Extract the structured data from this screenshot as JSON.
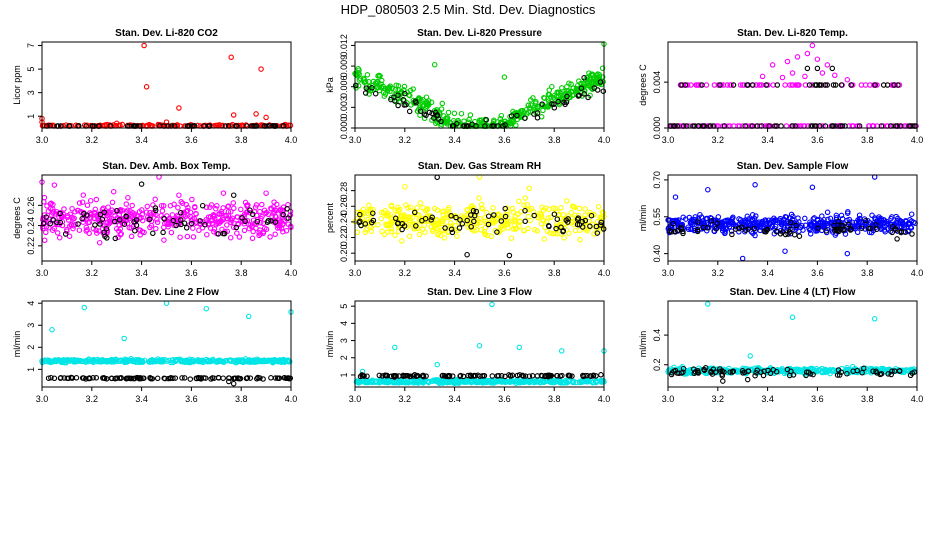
{
  "figure_title": "HDP_080503  2.5 Min. Std. Dev. Diagnostics",
  "chart_data": [
    {
      "type": "scatter",
      "title": "Stan. Dev. Li-820 CO2",
      "xlabel": "",
      "ylabel": "Licor ppm",
      "xlim": [
        3.0,
        4.0
      ],
      "ylim": [
        0,
        7.3
      ],
      "xticks": [
        3.0,
        3.2,
        3.4,
        3.6,
        3.8,
        4.0
      ],
      "xtick_labels": [
        "3.0",
        "3.2",
        "3.4",
        "3.6",
        "3.8",
        "4.0"
      ],
      "yticks": [
        1,
        3,
        5,
        7
      ],
      "ytick_labels": [
        "1",
        "3",
        "5",
        "7"
      ],
      "series": [
        {
          "name": "red",
          "color": "#ff0000",
          "base": 0.15,
          "spread": 0.25,
          "n": 150,
          "points": [
            [
              3.0,
              0.8
            ],
            [
              3.0,
              0.5
            ],
            [
              3.41,
              7.0
            ],
            [
              3.42,
              3.5
            ],
            [
              3.55,
              1.7
            ],
            [
              3.76,
              6.0
            ],
            [
              3.77,
              1.1
            ],
            [
              3.86,
              1.2
            ],
            [
              3.88,
              5.0
            ],
            [
              3.9,
              0.9
            ],
            [
              3.3,
              0.4
            ],
            [
              3.5,
              0.5
            ]
          ]
        },
        {
          "name": "black",
          "color": "#000000",
          "base": 0.12,
          "spread": 0.12,
          "n": 60,
          "points": []
        }
      ]
    },
    {
      "type": "scatter",
      "title": "Stan. Dev. Li-820 Pressure",
      "xlabel": "",
      "ylabel": "kPa",
      "xlim": [
        3.0,
        4.0
      ],
      "ylim": [
        0,
        0.0125
      ],
      "xticks": [
        3.0,
        3.2,
        3.4,
        3.6,
        3.8,
        4.0
      ],
      "xtick_labels": [
        "3.0",
        "3.2",
        "3.4",
        "3.6",
        "3.8",
        "4.0"
      ],
      "yticks": [
        0.0,
        0.003,
        0.006,
        0.009,
        0.012
      ],
      "ytick_labels": [
        "0.000",
        "0.003",
        "0.006",
        "0.009",
        "0.012"
      ],
      "series": [
        {
          "name": "green",
          "color": "#00cc00",
          "shape": "u",
          "top": 0.0075,
          "bottom": 0.0002,
          "spread": 0.0015,
          "n": 420,
          "points": [
            [
              3.32,
              0.0092
            ],
            [
              4.0,
              0.0125
            ],
            [
              3.6,
              0.0074
            ]
          ]
        },
        {
          "name": "black",
          "color": "#000000",
          "shape": "u",
          "top": 0.006,
          "bottom": 0.0001,
          "spread": 0.0009,
          "n": 70,
          "points": [
            [
              3.92,
              0.0073
            ],
            [
              3.2,
              0.005
            ]
          ]
        }
      ]
    },
    {
      "type": "scatter",
      "title": "Stan. Dev. Li-820 Temp.",
      "xlabel": "",
      "ylabel": "degrees C",
      "xlim": [
        3.0,
        4.0
      ],
      "ylim": [
        0,
        0.0075
      ],
      "xticks": [
        3.0,
        3.2,
        3.4,
        3.6,
        3.8,
        4.0
      ],
      "xtick_labels": [
        "3.0",
        "3.2",
        "3.4",
        "3.6",
        "3.8",
        "4.0"
      ],
      "yticks": [
        0.0,
        0.004
      ],
      "ytick_labels": [
        "0.000",
        "0.004"
      ],
      "series": [
        {
          "name": "magenta",
          "color": "#ff00ff",
          "levels": [
            0.0,
            0.00375
          ],
          "n": 160,
          "points": [
            [
              3.42,
              0.0055
            ],
            [
              3.48,
              0.0058
            ],
            [
              3.52,
              0.0062
            ],
            [
              3.56,
              0.0065
            ],
            [
              3.58,
              0.0072
            ],
            [
              3.6,
              0.006
            ],
            [
              3.64,
              0.0055
            ],
            [
              3.5,
              0.0048
            ],
            [
              3.55,
              0.0045
            ],
            [
              3.62,
              0.0048
            ],
            [
              3.38,
              0.0045
            ],
            [
              3.67,
              0.0046
            ],
            [
              3.72,
              0.0042
            ],
            [
              3.46,
              0.0044
            ]
          ]
        },
        {
          "name": "black",
          "color": "#000000",
          "levels": [
            0.0,
            0.00375
          ],
          "n": 80,
          "points": [
            [
              3.56,
              0.0052
            ],
            [
              3.6,
              0.0052
            ],
            [
              3.66,
              0.0052
            ]
          ]
        }
      ]
    },
    {
      "type": "scatter",
      "title": "Stan. Dev. Amb. Box Temp.",
      "xlabel": "",
      "ylabel": "degrees C",
      "xlim": [
        3.0,
        4.0
      ],
      "ylim": [
        0.205,
        0.29
      ],
      "xticks": [
        3.0,
        3.2,
        3.4,
        3.6,
        3.8,
        4.0
      ],
      "xtick_labels": [
        "3.0",
        "3.2",
        "3.4",
        "3.6",
        "3.8",
        "4.0"
      ],
      "yticks": [
        0.22,
        0.24,
        0.26
      ],
      "ytick_labels": [
        "0.22",
        "0.24",
        "0.26"
      ],
      "series": [
        {
          "name": "magenta",
          "color": "#ff00ff",
          "center": 0.247,
          "spread": 0.018,
          "n": 460,
          "points": [
            [
              3.0,
              0.283
            ],
            [
              3.05,
              0.28
            ],
            [
              3.47,
              0.29
            ],
            [
              3.55,
              0.27
            ],
            [
              3.9,
              0.272
            ]
          ]
        },
        {
          "name": "black",
          "color": "#000000",
          "center": 0.245,
          "spread": 0.014,
          "n": 65,
          "points": [
            [
              3.4,
              0.281
            ],
            [
              3.77,
              0.27
            ]
          ]
        }
      ]
    },
    {
      "type": "scatter",
      "title": "Stan. Dev. Gas Stream RH",
      "xlabel": "",
      "ylabel": "percent",
      "xlim": [
        3.0,
        4.0
      ],
      "ylim": [
        0.19,
        0.3
      ],
      "xticks": [
        3.0,
        3.2,
        3.4,
        3.6,
        3.8,
        4.0
      ],
      "xtick_labels": [
        "3.0",
        "3.2",
        "3.4",
        "3.6",
        "3.8",
        "4.0"
      ],
      "yticks": [
        0.2,
        0.22,
        0.24,
        0.26,
        0.28
      ],
      "ytick_labels": [
        "0.20",
        "0.22",
        "0.24",
        "0.26",
        "0.28"
      ],
      "series": [
        {
          "name": "yellow",
          "color": "#ffff00",
          "center": 0.242,
          "spread": 0.02,
          "n": 420,
          "points": [
            [
              3.5,
              0.3
            ],
            [
              3.2,
              0.285
            ],
            [
              3.7,
              0.283
            ]
          ]
        },
        {
          "name": "black",
          "color": "#000000",
          "center": 0.24,
          "spread": 0.017,
          "n": 70,
          "points": [
            [
              3.33,
              0.297
            ],
            [
              3.62,
              0.197
            ],
            [
              3.45,
              0.198
            ]
          ]
        }
      ]
    },
    {
      "type": "scatter",
      "title": "Stan. Dev. Sample Flow",
      "xlabel": "",
      "ylabel": "ml/min",
      "xlim": [
        3.0,
        4.0
      ],
      "ylim": [
        0.37,
        0.72
      ],
      "xticks": [
        3.0,
        3.2,
        3.4,
        3.6,
        3.8,
        4.0
      ],
      "xtick_labels": [
        "3.0",
        "3.2",
        "3.4",
        "3.6",
        "3.8",
        "4.0"
      ],
      "yticks": [
        0.4,
        0.55,
        0.7
      ],
      "ytick_labels": [
        "0.40",
        "0.55",
        "0.70"
      ],
      "series": [
        {
          "name": "blue",
          "color": "#0000ff",
          "center": 0.52,
          "spread": 0.035,
          "n": 480,
          "points": [
            [
              3.16,
              0.66
            ],
            [
              3.35,
              0.68
            ],
            [
              3.58,
              0.67
            ],
            [
              3.83,
              0.72
            ],
            [
              3.03,
              0.63
            ],
            [
              3.72,
              0.4
            ],
            [
              3.3,
              0.38
            ],
            [
              3.47,
              0.41
            ]
          ]
        },
        {
          "name": "black",
          "color": "#000000",
          "center": 0.5,
          "spread": 0.03,
          "n": 70,
          "points": [
            [
              3.92,
              0.46
            ],
            [
              3.98,
              0.48
            ]
          ]
        }
      ]
    },
    {
      "type": "scatter",
      "title": "Stan. Dev. Line 2 Flow",
      "xlabel": "",
      "ylabel": "ml/min",
      "xlim": [
        3.0,
        4.0
      ],
      "ylim": [
        0.2,
        4.1
      ],
      "xticks": [
        3.0,
        3.2,
        3.4,
        3.6,
        3.8,
        4.0
      ],
      "xtick_labels": [
        "3.0",
        "3.2",
        "3.4",
        "3.6",
        "3.8",
        "4.0"
      ],
      "yticks": [
        1,
        2,
        3,
        4
      ],
      "ytick_labels": [
        "1",
        "2",
        "3",
        "4"
      ],
      "series": [
        {
          "name": "cyan",
          "color": "#00e5e5",
          "center": 1.38,
          "spread": 0.07,
          "n": 380,
          "points": [
            [
              3.04,
              2.8
            ],
            [
              3.17,
              3.8
            ],
            [
              3.33,
              2.4
            ],
            [
              3.5,
              4.0
            ],
            [
              3.66,
              3.75
            ],
            [
              3.83,
              3.4
            ],
            [
              4.0,
              3.6
            ]
          ]
        },
        {
          "name": "black",
          "color": "#000000",
          "center": 0.6,
          "spread": 0.03,
          "n": 110,
          "points": [
            [
              3.77,
              0.35
            ],
            [
              3.75,
              0.45
            ]
          ]
        }
      ]
    },
    {
      "type": "scatter",
      "title": "Stan. Dev. Line 3 Flow",
      "xlabel": "",
      "ylabel": "ml/min",
      "xlim": [
        3.0,
        4.0
      ],
      "ylim": [
        0.3,
        5.3
      ],
      "xticks": [
        3.0,
        3.2,
        3.4,
        3.6,
        3.8,
        4.0
      ],
      "xtick_labels": [
        "3.0",
        "3.2",
        "3.4",
        "3.6",
        "3.8",
        "4.0"
      ],
      "yticks": [
        1,
        2,
        3,
        4,
        5
      ],
      "ytick_labels": [
        "1",
        "2",
        "3",
        "4",
        "5"
      ],
      "series": [
        {
          "name": "cyan",
          "color": "#00e5e5",
          "center": 0.62,
          "spread": 0.09,
          "n": 380,
          "points": [
            [
              3.03,
              1.2
            ],
            [
              3.16,
              2.6
            ],
            [
              3.33,
              1.6
            ],
            [
              3.5,
              2.7
            ],
            [
              3.55,
              5.1
            ],
            [
              3.66,
              2.6
            ],
            [
              3.83,
              2.4
            ],
            [
              4.0,
              2.4
            ]
          ]
        },
        {
          "name": "black",
          "color": "#000000",
          "center": 0.95,
          "spread": 0.05,
          "n": 110,
          "points": []
        }
      ]
    },
    {
      "type": "scatter",
      "title": "Stan. Dev. Line 4 (LT) Flow",
      "xlabel": "",
      "ylabel": "ml/min",
      "xlim": [
        3.0,
        4.0
      ],
      "ylim": [
        0.05,
        0.63
      ],
      "xticks": [
        3.0,
        3.2,
        3.4,
        3.6,
        3.8,
        4.0
      ],
      "xtick_labels": [
        "3.0",
        "3.2",
        "3.4",
        "3.6",
        "3.8",
        "4.0"
      ],
      "yticks": [
        0.2,
        0.4
      ],
      "ytick_labels": [
        "0.2",
        "0.4"
      ],
      "series": [
        {
          "name": "cyan",
          "color": "#00e5e5",
          "center": 0.16,
          "spread": 0.018,
          "n": 380,
          "points": [
            [
              3.16,
              0.61
            ],
            [
              3.5,
              0.52
            ],
            [
              3.83,
              0.51
            ],
            [
              3.33,
              0.26
            ]
          ]
        },
        {
          "name": "black",
          "color": "#000000",
          "center": 0.15,
          "spread": 0.025,
          "n": 80,
          "points": [
            [
              3.32,
              0.1
            ],
            [
              3.22,
              0.09
            ]
          ]
        }
      ]
    }
  ]
}
